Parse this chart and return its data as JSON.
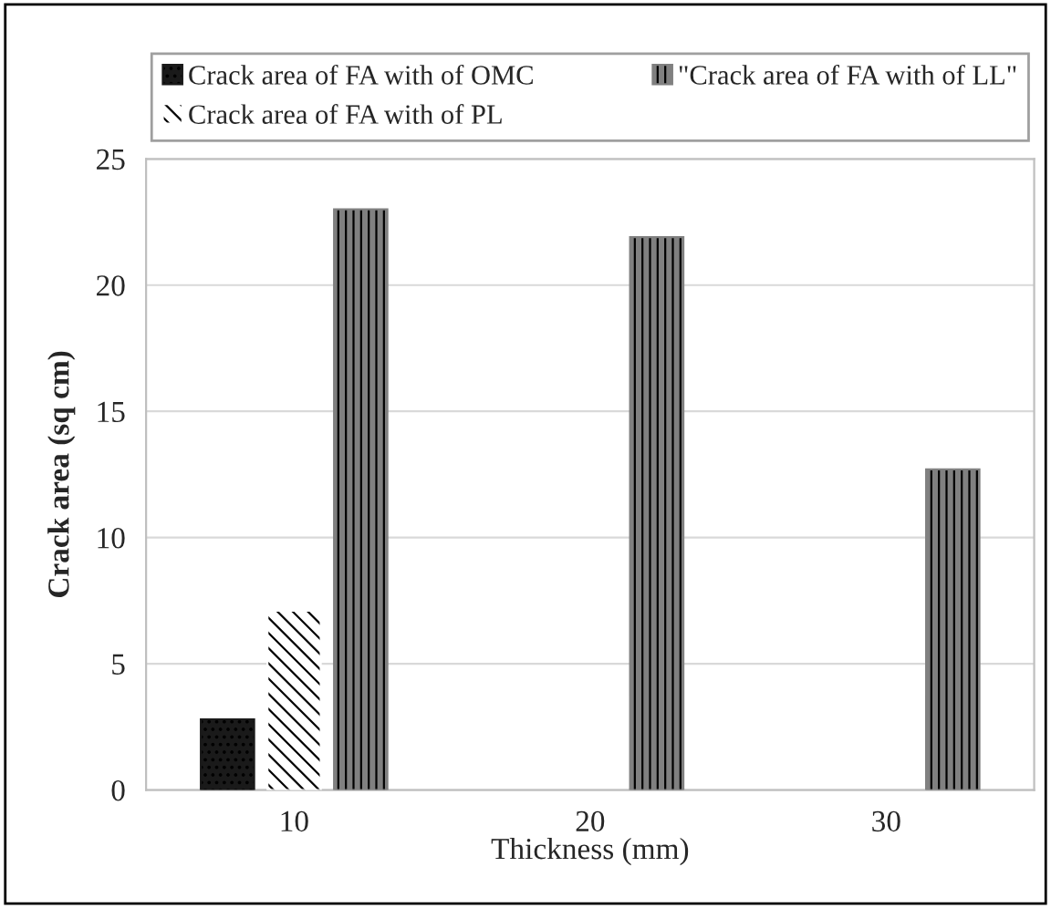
{
  "chart_data": {
    "type": "bar",
    "xlabel": "Thickness (mm)",
    "ylabel": "Crack area (sq cm)",
    "categories": [
      "10",
      "20",
      "30"
    ],
    "series": [
      {
        "name": "Crack area of FA with of OMC",
        "color": "#1a1a1a",
        "values": [
          2.8,
          null,
          null
        ]
      },
      {
        "name": "Crack area of FA with of PL",
        "color": "#ffffff",
        "values": [
          7.1,
          null,
          null
        ]
      },
      {
        "name": "\"Crack area of FA with of LL\"",
        "color": "#808080",
        "values": [
          23.0,
          21.9,
          12.7
        ]
      }
    ],
    "ylim": [
      0,
      25
    ],
    "yticks": [
      0,
      5,
      10,
      15,
      20,
      25
    ],
    "grid": "y",
    "legend": "top"
  }
}
